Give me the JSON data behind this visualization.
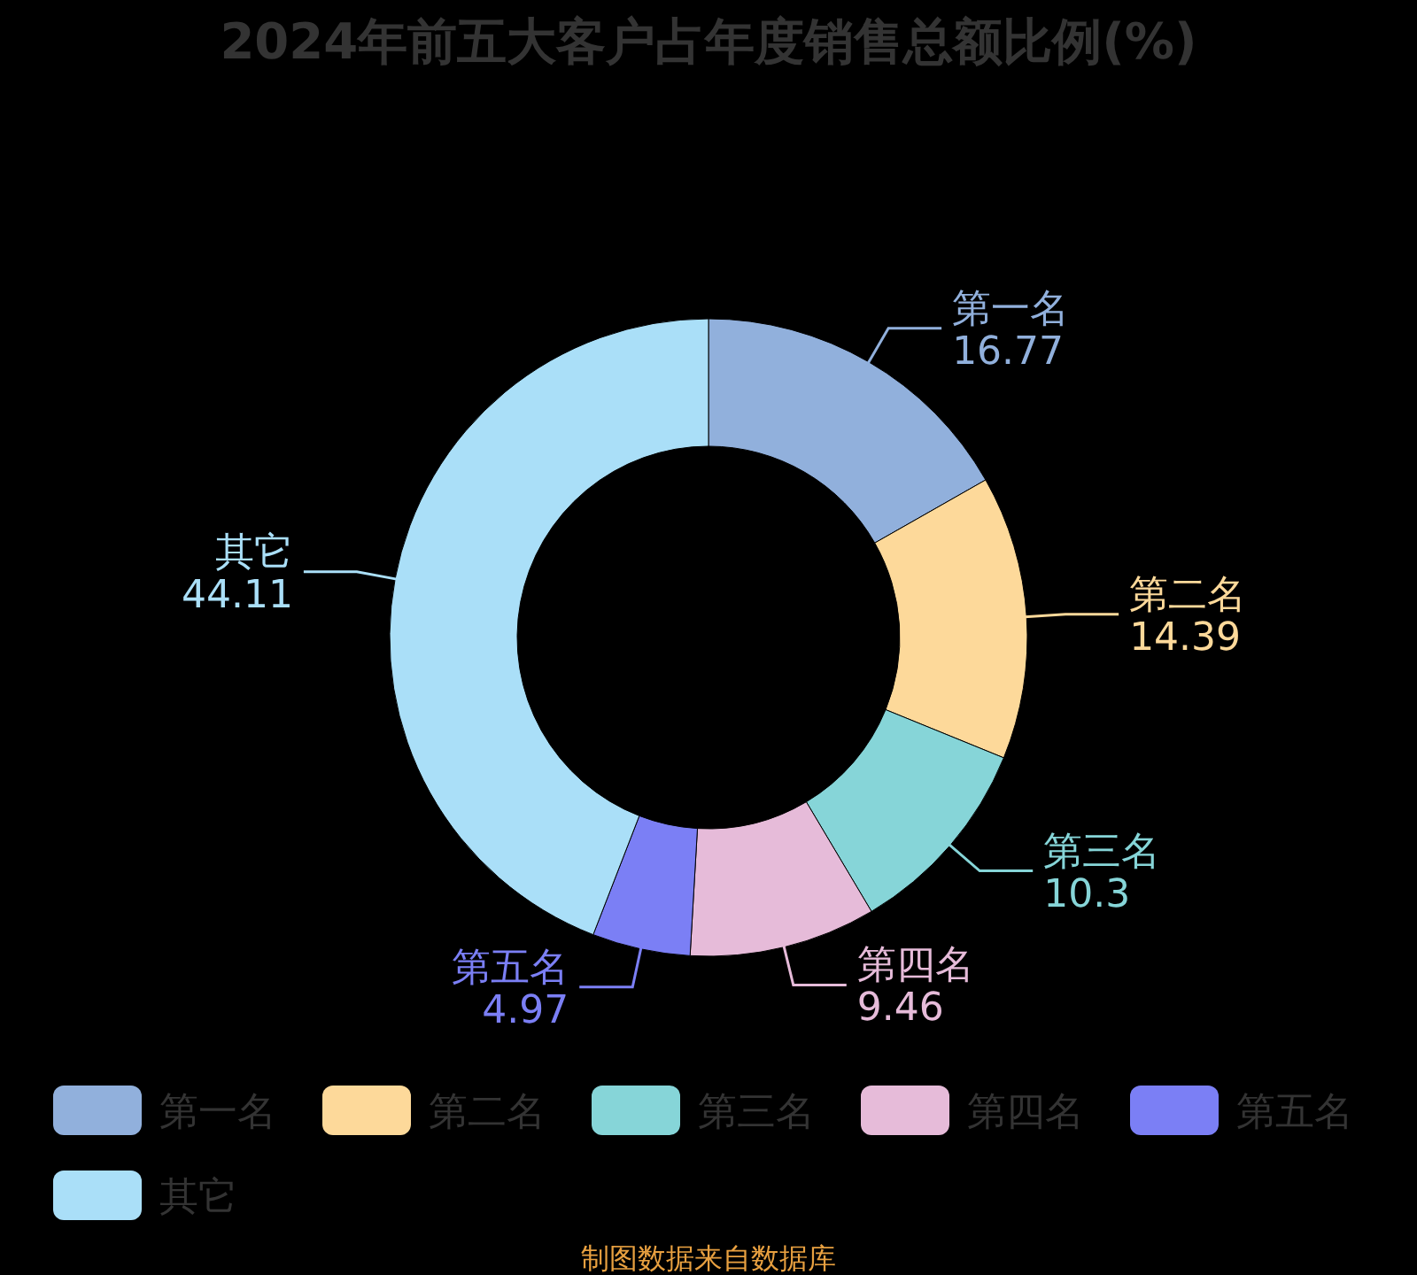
{
  "chart_data": {
    "type": "donut",
    "title": "2024年前五大客户占年度销售总额比例(%)",
    "categories": [
      "第一名",
      "第二名",
      "第三名",
      "第四名",
      "第五名",
      "其它"
    ],
    "values": [
      16.77,
      14.39,
      10.3,
      9.46,
      4.97,
      44.11
    ],
    "colors": [
      "#91b0dc",
      "#fdd99a",
      "#86d5d8",
      "#e6bbd9",
      "#7b7ff5",
      "#aadff8"
    ],
    "data_labels": true,
    "legend": "bottom",
    "annotations": [
      "制图数据来自数据库"
    ]
  }
}
